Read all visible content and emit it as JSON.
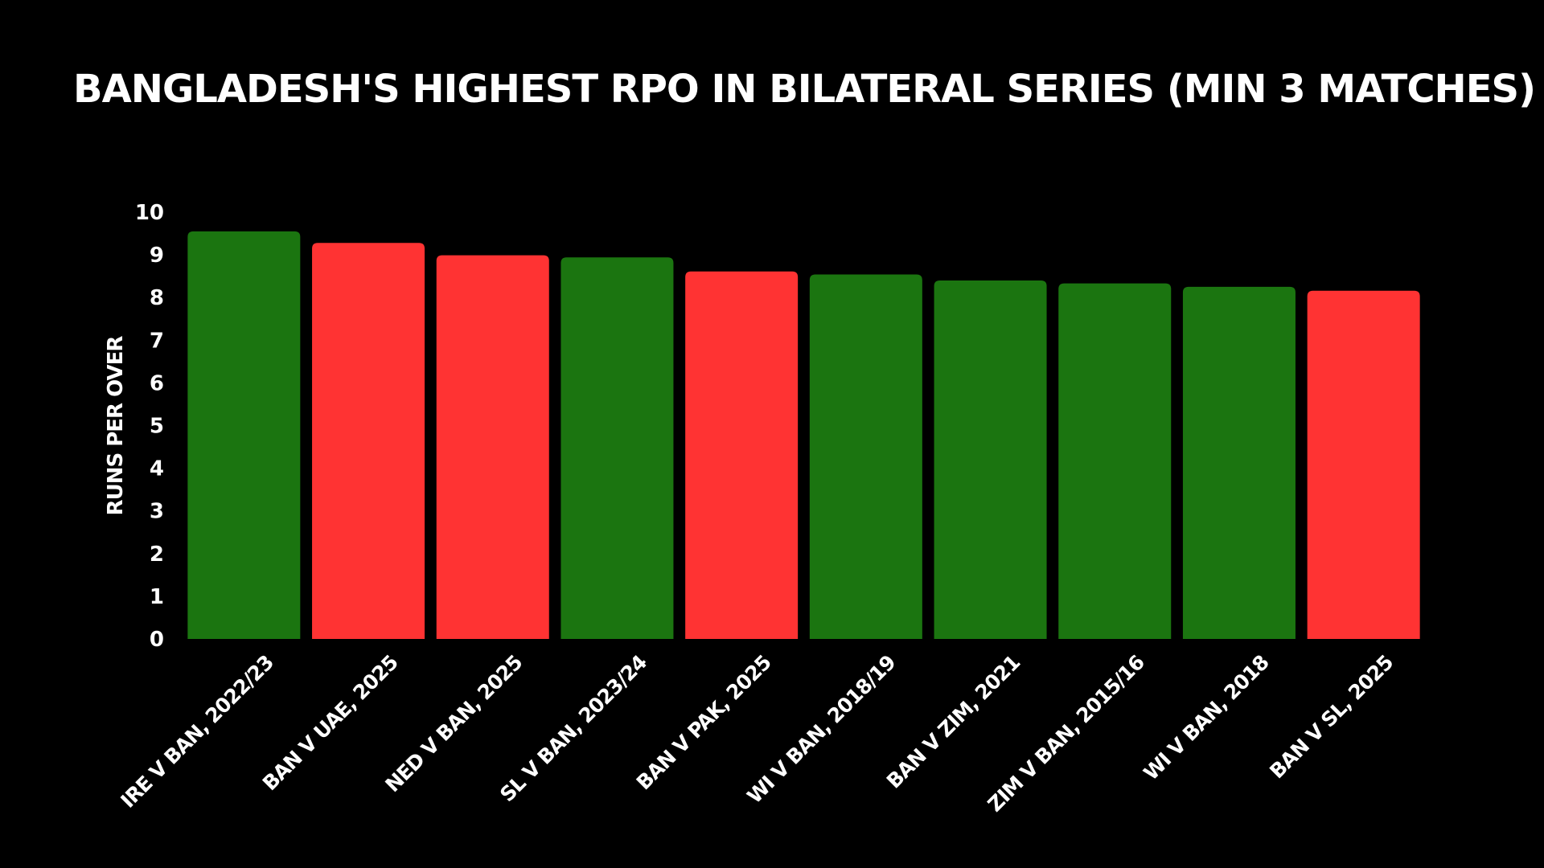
{
  "chart_data": {
    "type": "bar",
    "title": "BANGLADESH'S HIGHEST RPO IN BILATERAL SERIES (MIN 3 MATCHES)",
    "xlabel": "",
    "ylabel": "RUNS PER OVER",
    "ylim": [
      0,
      10
    ],
    "yticks": [
      "0",
      "1",
      "2",
      "3",
      "4",
      "5",
      "6",
      "7",
      "8",
      "9",
      "10"
    ],
    "grid": false,
    "categories": [
      "IRE V BAN, 2022/23",
      "BAN V UAE, 2025",
      "NED V BAN, 2025",
      "SL V BAN, 2023/24",
      "BAN V PAK, 2025",
      "WI V BAN, 2018/19",
      "BAN V ZIM, 2021",
      "ZIM V BAN, 2015/16",
      "WI V BAN, 2018",
      "BAN V SL, 2025"
    ],
    "values": [
      9.55,
      9.28,
      8.99,
      8.94,
      8.61,
      8.54,
      8.4,
      8.33,
      8.25,
      8.16
    ],
    "bar_colors": [
      "#1b7510",
      "#ff3333",
      "#ff3333",
      "#1b7510",
      "#ff3333",
      "#1b7510",
      "#1b7510",
      "#1b7510",
      "#1b7510",
      "#ff3333"
    ]
  }
}
